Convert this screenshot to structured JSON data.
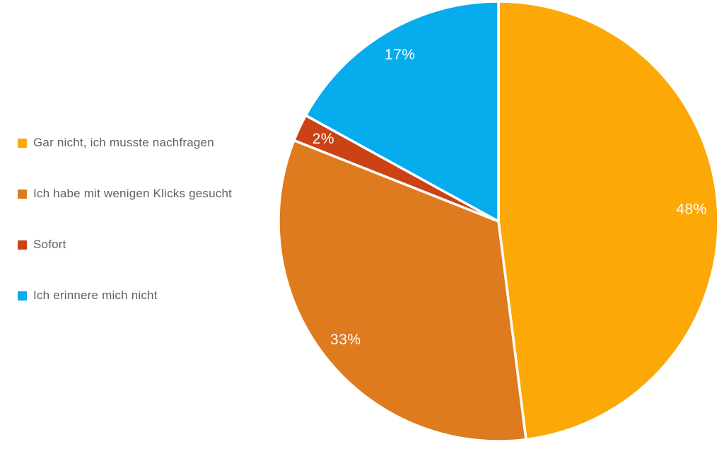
{
  "chart_data": {
    "type": "pie",
    "title": "",
    "legend_position": "left",
    "direction": "clockwise",
    "start_angle_deg": 0,
    "slice_label_color": "#FFFFFF",
    "slice_border_color": "#FFFFFF",
    "legend_text_color": "#616161",
    "slices": [
      {
        "label": "Gar nicht, ich musste nachfragen",
        "value": 48,
        "display": "48%",
        "color": "#FCA908"
      },
      {
        "label": "Ich habe mit wenigen Klicks gesucht",
        "value": 33,
        "display": "33%",
        "color": "#DE7B1F"
      },
      {
        "label": "Sofort",
        "value": 2,
        "display": "2%",
        "color": "#CB4315"
      },
      {
        "label": "Ich erinnere mich nicht",
        "value": 17,
        "display": "17%",
        "color": "#06ACEC"
      }
    ]
  }
}
